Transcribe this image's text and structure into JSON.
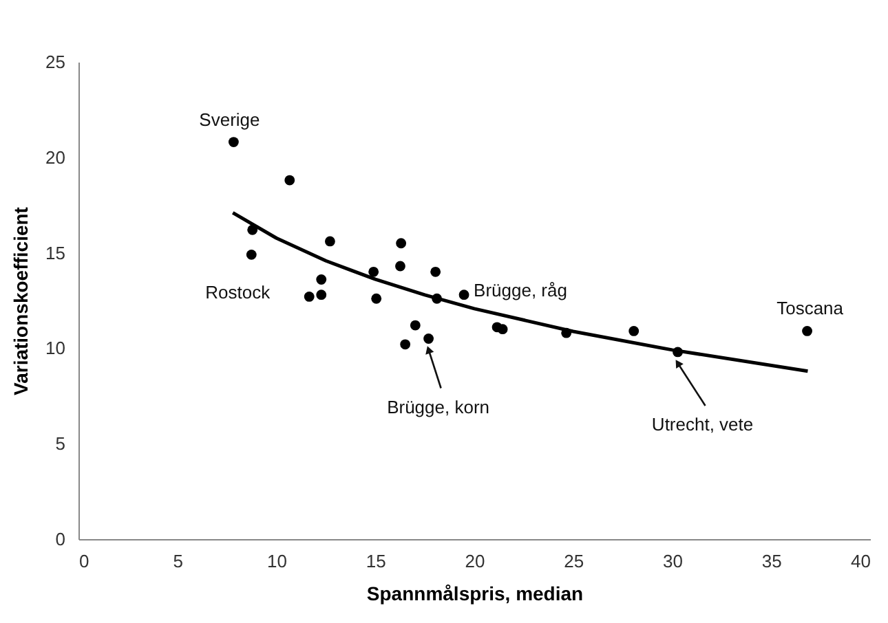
{
  "chart_data": {
    "type": "scatter",
    "xlabel": "Spannmålspris, median",
    "ylabel": "Variationskoefficient",
    "series": [
      {
        "color": "#000000",
        "marker": "circle",
        "x": [
          7.84,
          10.67,
          8.79,
          8.74,
          12.71,
          12.27,
          11.66,
          12.27,
          14.91,
          15.05,
          16.3,
          16.26,
          18.04,
          18.11,
          19.48,
          17.02,
          16.51,
          17.69,
          21.15,
          21.43,
          24.65,
          28.06,
          30.28,
          36.82
        ],
        "values": [
          20.8,
          18.8,
          16.2,
          14.9,
          15.6,
          13.6,
          12.7,
          12.8,
          14.0,
          12.6,
          15.5,
          14.3,
          14.0,
          12.6,
          12.8,
          11.2,
          10.2,
          10.5,
          11.1,
          11.0,
          10.8,
          10.9,
          9.8,
          10.9
        ]
      },
      {
        "type": "line",
        "marker": "none",
        "color": "#000000",
        "x": [
          7.8,
          10,
          12.5,
          15,
          17.5,
          20,
          25,
          30,
          36.85
        ],
        "values": [
          17.1,
          15.77,
          14.58,
          13.61,
          12.79,
          12.07,
          10.88,
          9.91,
          8.8
        ]
      }
    ],
    "xlim": [
      0,
      40
    ],
    "xticks": [
      0,
      5,
      10,
      15,
      20,
      25,
      30,
      35,
      40
    ],
    "ylim": [
      0,
      25
    ],
    "yticks": [
      0,
      5,
      10,
      15,
      20,
      25
    ],
    "grid": false,
    "line_style": "solid",
    "annotations": [
      {
        "text": "Sverige",
        "x": 7.84,
        "y": 20.8
      },
      {
        "text": "Rostock",
        "x": 8.74,
        "y": 14.9
      },
      {
        "text": "Brügge, råg",
        "x": 19.48,
        "y": 12.8
      },
      {
        "text": "Toscana",
        "x": 36.82,
        "y": 10.9
      },
      {
        "text": "Brügge, korn",
        "x": 17.69,
        "y": 10.5
      },
      {
        "text": "Utrecht, vete",
        "x": 30.28,
        "y": 9.8
      }
    ]
  }
}
